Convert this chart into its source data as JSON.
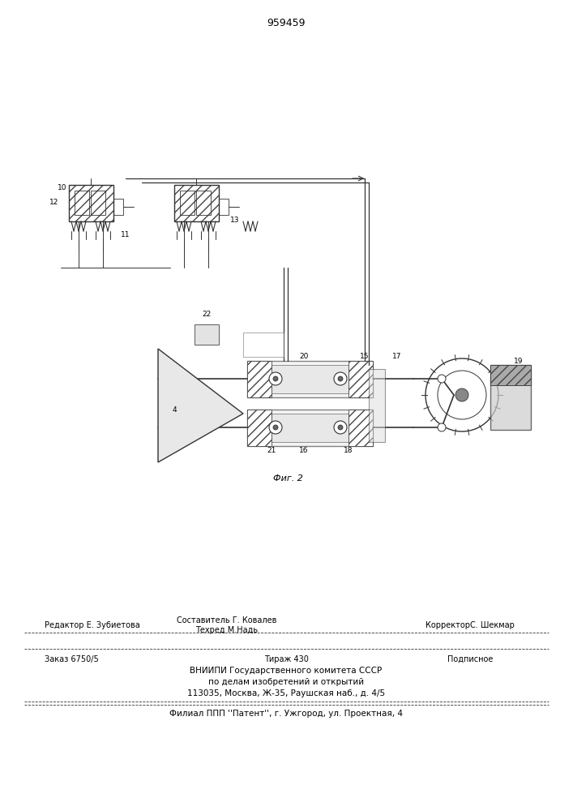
{
  "patent_number": "959459",
  "fig_label": "Фиг. 2",
  "bg_color": "#ffffff",
  "text_color": "#000000",
  "footer": {
    "line1_left": "Редактор Е. Зубиетова",
    "line1_center_top": "Составитель Г. Ковалев",
    "line1_center_bot": "Техред М.Надь",
    "line1_right": "КорректорС. Шекмар",
    "line2_left": "Заказ 6750/5",
    "line2_center": "Тираж 430",
    "line2_right": "Подписное",
    "line3": "ВНИИПИ Государственного комитета СССР",
    "line4": "по делам изобретений и открытий",
    "line5": "113035, Москва, Ж-35, Раушская наб., д. 4/5",
    "line6": "Филиал ППП ''Патент'', г. Ужгород, ул. Проектная, 4"
  }
}
